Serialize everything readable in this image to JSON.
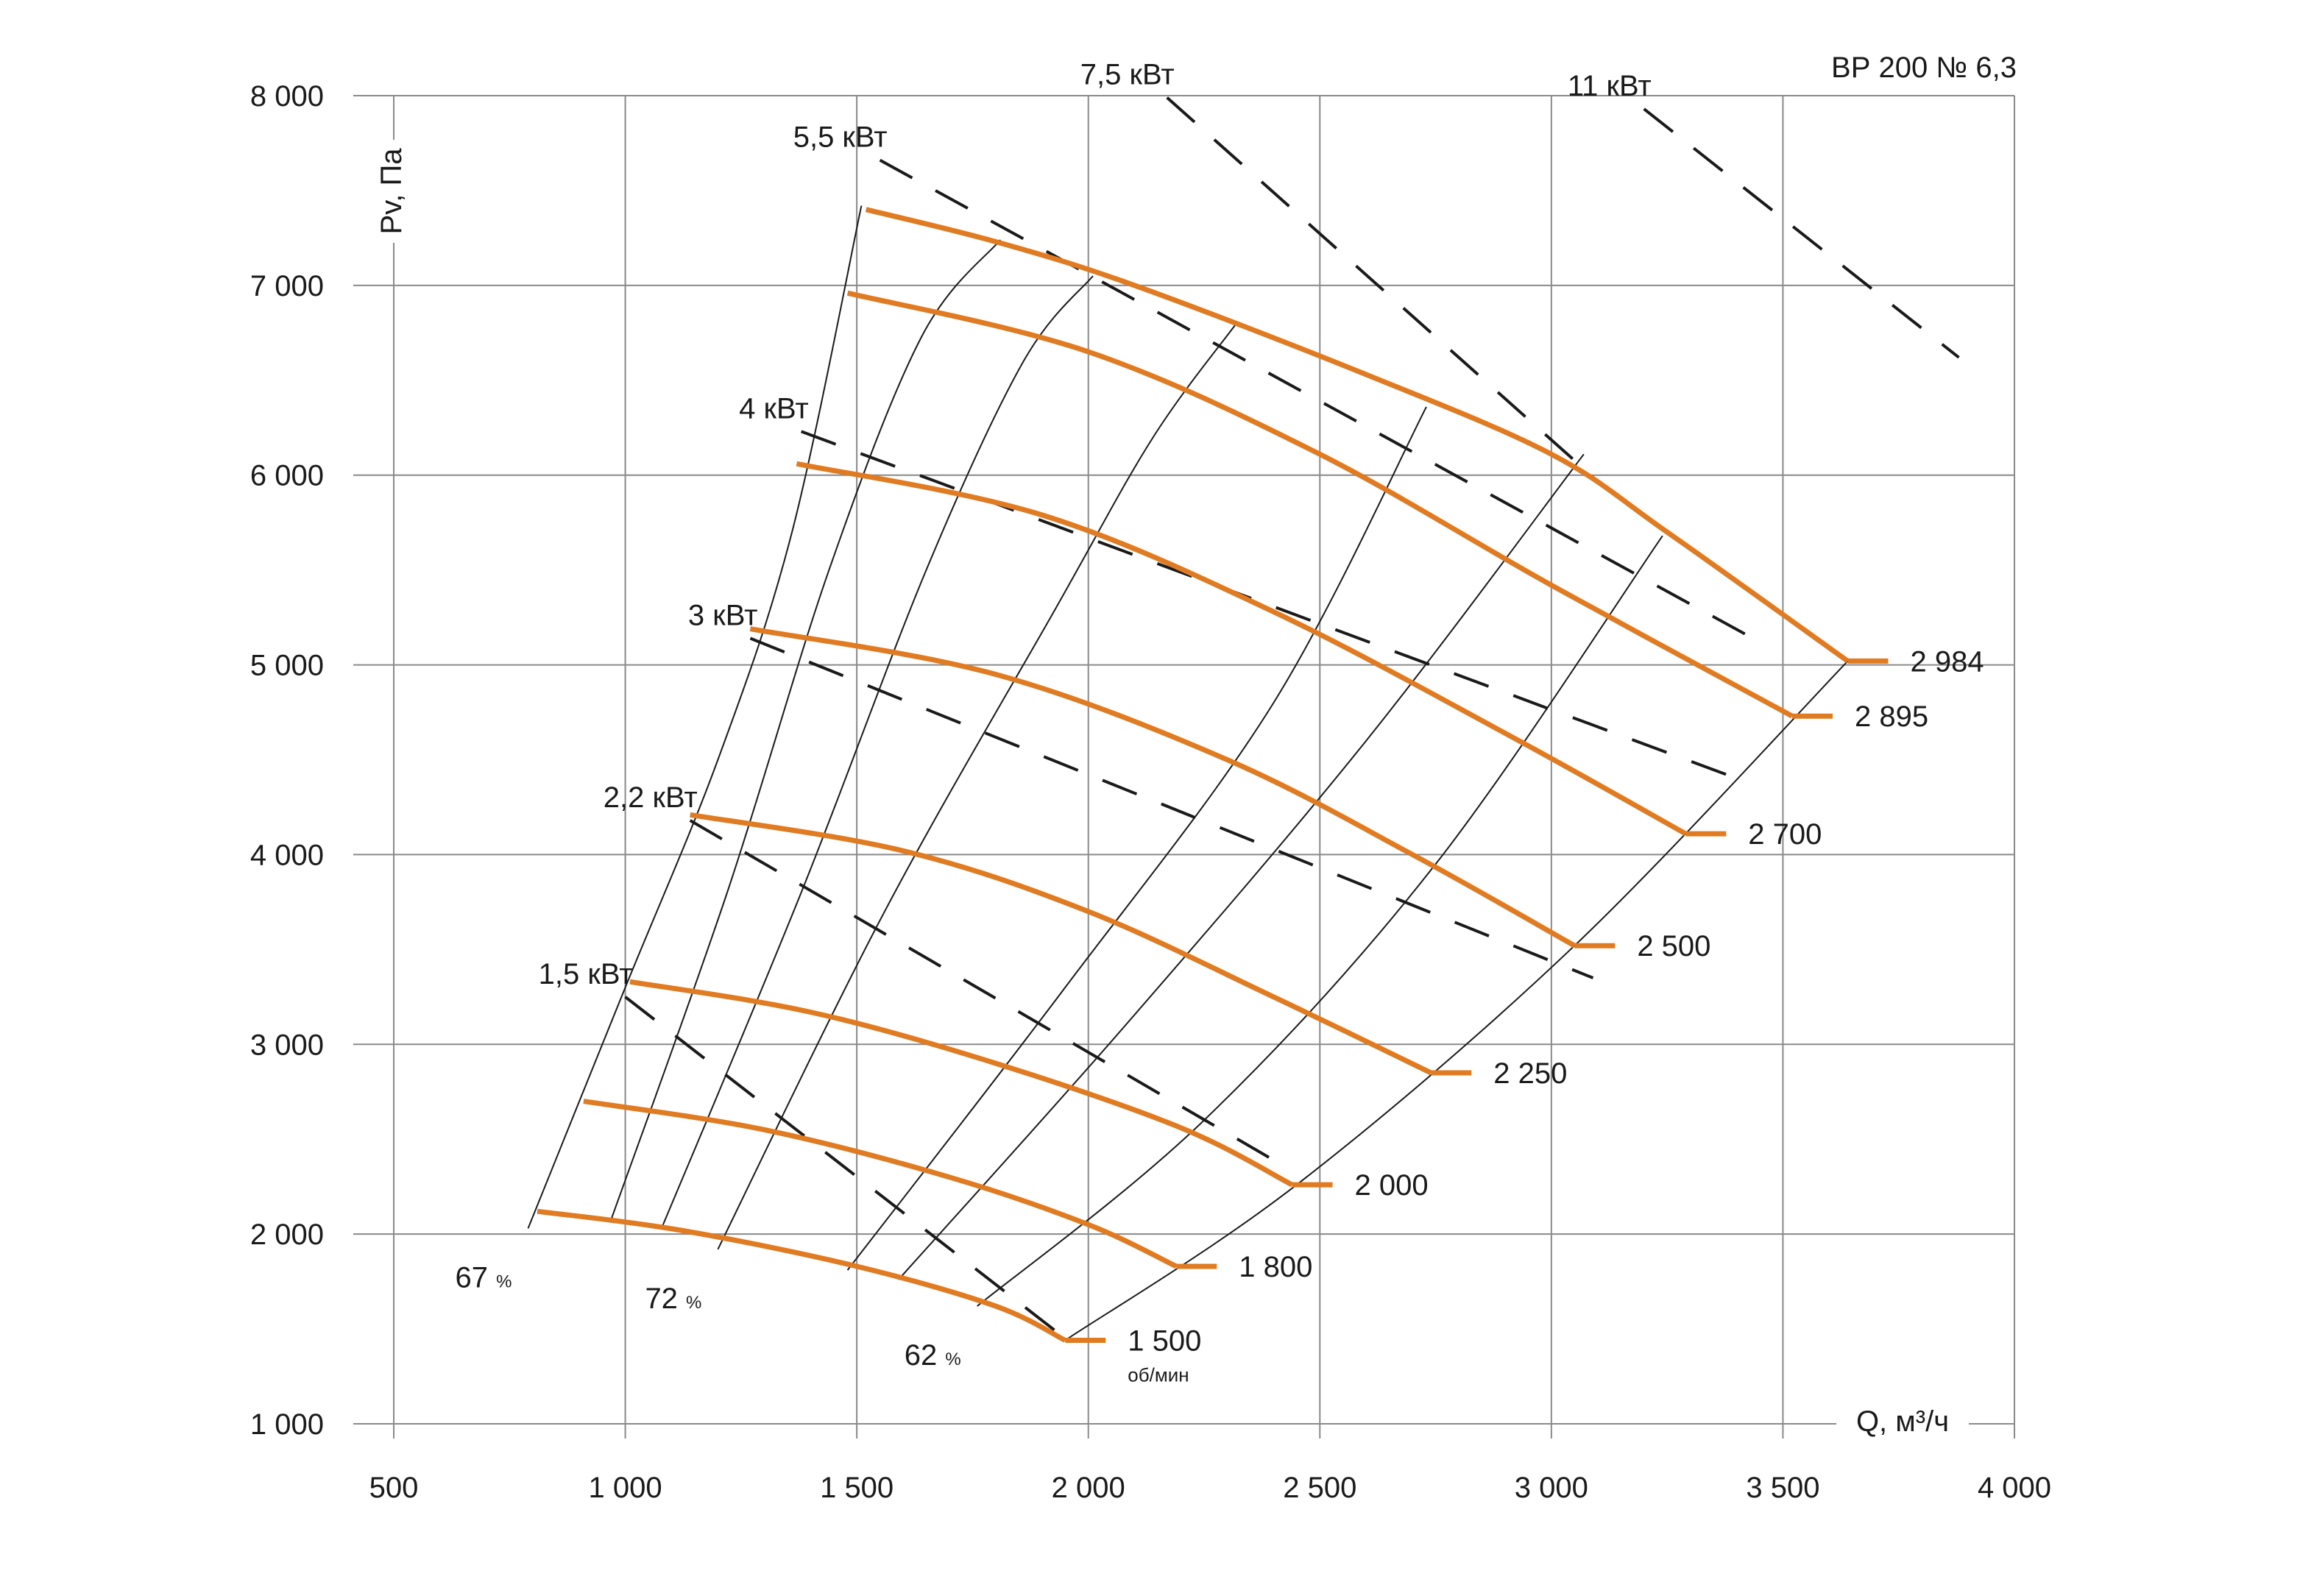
{
  "chart_data": {
    "type": "line",
    "title": "ВР  200 № 6,3",
    "xlabel": "Q, м³/ч",
    "ylabel": "Pv, Па",
    "xlim": [
      500,
      4000
    ],
    "ylim": [
      1000,
      8000
    ],
    "xticks": [
      500,
      1000,
      1500,
      2000,
      2500,
      3000,
      3500,
      4000
    ],
    "xtick_labels": [
      "500",
      "1 000",
      "1 500",
      "2 000",
      "2 500",
      "3 000",
      "3 500",
      "4 000"
    ],
    "yticks": [
      1000,
      2000,
      3000,
      4000,
      5000,
      6000,
      7000,
      8000
    ],
    "ytick_labels": [
      "1 000",
      "2 000",
      "3 000",
      "4 000",
      "5 000",
      "6 000",
      "7 000",
      "8 000"
    ],
    "grid": true,
    "speed_unit": "об/мин",
    "speed_curves": [
      {
        "label": "1 500",
        "points": [
          [
            810,
            2120
          ],
          [
            1120,
            2020
          ],
          [
            1500,
            1830
          ],
          [
            1800,
            1620
          ],
          [
            1950,
            1440
          ]
        ]
      },
      {
        "label": "1 800",
        "points": [
          [
            910,
            2700
          ],
          [
            1300,
            2550
          ],
          [
            1700,
            2300
          ],
          [
            2000,
            2050
          ],
          [
            2190,
            1830
          ]
        ]
      },
      {
        "label": "2 000",
        "points": [
          [
            1010,
            3330
          ],
          [
            1400,
            3170
          ],
          [
            1800,
            2900
          ],
          [
            2200,
            2560
          ],
          [
            2440,
            2260
          ]
        ]
      },
      {
        "label": "2 250",
        "points": [
          [
            1140,
            4210
          ],
          [
            1600,
            4020
          ],
          [
            2000,
            3700
          ],
          [
            2400,
            3250
          ],
          [
            2740,
            2850
          ]
        ]
      },
      {
        "label": "2 500",
        "points": [
          [
            1270,
            5190
          ],
          [
            1800,
            4950
          ],
          [
            2300,
            4500
          ],
          [
            2700,
            4000
          ],
          [
            3050,
            3520
          ]
        ]
      },
      {
        "label": "2 700",
        "points": [
          [
            1370,
            6060
          ],
          [
            1900,
            5790
          ],
          [
            2400,
            5280
          ],
          [
            2900,
            4640
          ],
          [
            3290,
            4110
          ]
        ]
      },
      {
        "label": "2 895",
        "points": [
          [
            1480,
            6960
          ],
          [
            2000,
            6650
          ],
          [
            2500,
            6110
          ],
          [
            3000,
            5420
          ],
          [
            3520,
            4730
          ]
        ]
      },
      {
        "label": "2 984",
        "points": [
          [
            1520,
            7400
          ],
          [
            1800,
            7230
          ],
          [
            2100,
            7000
          ],
          [
            2600,
            6530
          ],
          [
            3000,
            6110
          ],
          [
            3250,
            5700
          ],
          [
            3640,
            5020
          ]
        ]
      }
    ],
    "efficiency_curves": [
      {
        "label": "67 %",
        "points": [
          [
            790,
            2030
          ],
          [
            1000,
            3300
          ],
          [
            1200,
            4500
          ],
          [
            1360,
            5700
          ],
          [
            1510,
            7420
          ]
        ]
      },
      {
        "label": "",
        "points": [
          [
            970,
            2080
          ],
          [
            1220,
            3800
          ],
          [
            1440,
            5500
          ],
          [
            1640,
            6730
          ],
          [
            1810,
            7240
          ]
        ]
      },
      {
        "label": "",
        "points": [
          [
            1080,
            2040
          ],
          [
            1380,
            3800
          ],
          [
            1650,
            5500
          ],
          [
            1860,
            6600
          ],
          [
            2010,
            7050
          ]
        ]
      },
      {
        "label": "72 %",
        "points": [
          [
            1200,
            1920
          ],
          [
            1560,
            3700
          ],
          [
            1930,
            5300
          ],
          [
            2140,
            6200
          ],
          [
            2320,
            6800
          ]
        ]
      },
      {
        "label": "",
        "points": [
          [
            1480,
            1810
          ],
          [
            1950,
            3300
          ],
          [
            2400,
            4800
          ],
          [
            2730,
            6360
          ]
        ]
      },
      {
        "label": "",
        "points": [
          [
            1590,
            1760
          ],
          [
            2080,
            3100
          ],
          [
            2600,
            4600
          ],
          [
            3070,
            6110
          ]
        ]
      },
      {
        "label": "62 %",
        "points": [
          [
            1760,
            1620
          ],
          [
            2250,
            2600
          ],
          [
            2750,
            3950
          ],
          [
            3240,
            5680
          ]
        ]
      },
      {
        "label": "",
        "points": [
          [
            1950,
            1440
          ],
          [
            2450,
            2260
          ],
          [
            3050,
            3520
          ],
          [
            3640,
            5020
          ]
        ]
      }
    ],
    "power_lines": [
      {
        "label": "1,5 кВт",
        "points": [
          [
            1000,
            3250
          ],
          [
            1950,
            1450
          ]
        ]
      },
      {
        "label": "2,2 кВт",
        "points": [
          [
            1140,
            4180
          ],
          [
            2400,
            2390
          ]
        ]
      },
      {
        "label": "3 кВт",
        "points": [
          [
            1270,
            5140
          ],
          [
            3090,
            3350
          ]
        ]
      },
      {
        "label": "4 кВт",
        "points": [
          [
            1380,
            6230
          ],
          [
            3380,
            4420
          ]
        ]
      },
      {
        "label": "5,5 кВт",
        "points": [
          [
            1550,
            7660
          ],
          [
            3450,
            5120
          ]
        ]
      },
      {
        "label": "7,5 кВт",
        "points": [
          [
            2170,
            7990
          ],
          [
            3090,
            5990
          ]
        ]
      },
      {
        "label": "11 кВт",
        "points": [
          [
            3200,
            7930
          ],
          [
            3880,
            6620
          ]
        ]
      }
    ]
  }
}
